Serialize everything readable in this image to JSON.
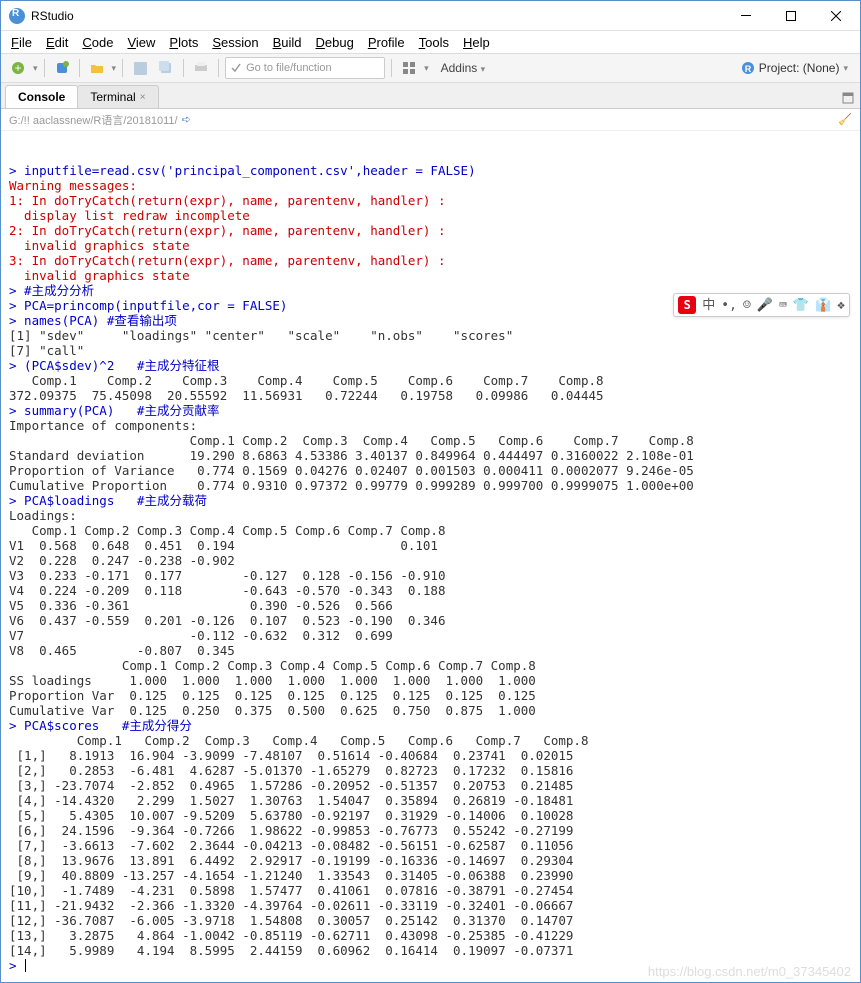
{
  "window": {
    "title": "RStudio"
  },
  "menu": [
    "File",
    "Edit",
    "Code",
    "View",
    "Plots",
    "Session",
    "Build",
    "Debug",
    "Profile",
    "Tools",
    "Help"
  ],
  "toolbar": {
    "search_placeholder": "Go to file/function",
    "addins_label": "Addins",
    "project_label": "Project: (None)"
  },
  "tabs": {
    "console": "Console",
    "terminal": "Terminal"
  },
  "path": "G:/!! aaclassnew/R语言/20181011/",
  "console_lines": [
    {
      "cls": "blue",
      "t": "> inputfile=read.csv('principal_component.csv',header = FALSE)"
    },
    {
      "cls": "red",
      "t": "Warning messages:"
    },
    {
      "cls": "red",
      "t": "1: In doTryCatch(return(expr), name, parentenv, handler) :"
    },
    {
      "cls": "red",
      "t": "  display list redraw incomplete"
    },
    {
      "cls": "red",
      "t": "2: In doTryCatch(return(expr), name, parentenv, handler) :"
    },
    {
      "cls": "red",
      "t": "  invalid graphics state"
    },
    {
      "cls": "red",
      "t": "3: In doTryCatch(return(expr), name, parentenv, handler) :"
    },
    {
      "cls": "red",
      "t": "  invalid graphics state"
    },
    {
      "cls": "blue",
      "t": "> #主成分分析"
    },
    {
      "cls": "blue",
      "t": "> PCA=princomp(inputfile,cor = FALSE)"
    },
    {
      "cls": "blue",
      "t": "> names(PCA) #查看输出项"
    },
    {
      "cls": "",
      "t": "[1] \"sdev\"     \"loadings\" \"center\"   \"scale\"    \"n.obs\"    \"scores\"  "
    },
    {
      "cls": "",
      "t": "[7] \"call\"    "
    },
    {
      "cls": "blue",
      "t": "> (PCA$sdev)^2   #主成分特征根"
    },
    {
      "cls": "",
      "t": "   Comp.1    Comp.2    Comp.3    Comp.4    Comp.5    Comp.6    Comp.7    Comp.8 "
    },
    {
      "cls": "",
      "t": "372.09375  75.45098  20.55592  11.56931   0.72244   0.19758   0.09986   0.04445 "
    },
    {
      "cls": "blue",
      "t": "> summary(PCA)   #主成分贡献率"
    },
    {
      "cls": "",
      "t": "Importance of components:"
    },
    {
      "cls": "",
      "t": "                        Comp.1 Comp.2  Comp.3  Comp.4   Comp.5   Comp.6    Comp.7    Comp.8"
    },
    {
      "cls": "",
      "t": "Standard deviation      19.290 8.6863 4.53386 3.40137 0.849964 0.444497 0.3160022 2.108e-01"
    },
    {
      "cls": "",
      "t": "Proportion of Variance   0.774 0.1569 0.04276 0.02407 0.001503 0.000411 0.0002077 9.246e-05"
    },
    {
      "cls": "",
      "t": "Cumulative Proportion    0.774 0.9310 0.97372 0.99779 0.999289 0.999700 0.9999075 1.000e+00"
    },
    {
      "cls": "blue",
      "t": "> PCA$loadings   #主成分载荷"
    },
    {
      "cls": "",
      "t": ""
    },
    {
      "cls": "",
      "t": "Loadings:"
    },
    {
      "cls": "",
      "t": "   Comp.1 Comp.2 Comp.3 Comp.4 Comp.5 Comp.6 Comp.7 Comp.8"
    },
    {
      "cls": "",
      "t": "V1  0.568  0.648  0.451  0.194                      0.101"
    },
    {
      "cls": "",
      "t": "V2  0.228  0.247 -0.238 -0.902                            "
    },
    {
      "cls": "",
      "t": "V3  0.233 -0.171  0.177        -0.127  0.128 -0.156 -0.910"
    },
    {
      "cls": "",
      "t": "V4  0.224 -0.209  0.118        -0.643 -0.570 -0.343  0.188"
    },
    {
      "cls": "",
      "t": "V5  0.336 -0.361                0.390 -0.526  0.566       "
    },
    {
      "cls": "",
      "t": "V6  0.437 -0.559  0.201 -0.126  0.107  0.523 -0.190  0.346"
    },
    {
      "cls": "",
      "t": "V7                      -0.112 -0.632  0.312  0.699       "
    },
    {
      "cls": "",
      "t": "V8  0.465        -0.807  0.345                            "
    },
    {
      "cls": "",
      "t": ""
    },
    {
      "cls": "",
      "t": "               Comp.1 Comp.2 Comp.3 Comp.4 Comp.5 Comp.6 Comp.7 Comp.8"
    },
    {
      "cls": "",
      "t": "SS loadings     1.000  1.000  1.000  1.000  1.000  1.000  1.000  1.000"
    },
    {
      "cls": "",
      "t": "Proportion Var  0.125  0.125  0.125  0.125  0.125  0.125  0.125  0.125"
    },
    {
      "cls": "",
      "t": "Cumulative Var  0.125  0.250  0.375  0.500  0.625  0.750  0.875  1.000"
    },
    {
      "cls": "blue",
      "t": "> PCA$scores   #主成分得分"
    },
    {
      "cls": "",
      "t": "         Comp.1   Comp.2  Comp.3   Comp.4   Comp.5   Comp.6   Comp.7   Comp.8"
    },
    {
      "cls": "",
      "t": " [1,]   8.1913  16.904 -3.9099 -7.48107  0.51614 -0.40684  0.23741  0.02015"
    },
    {
      "cls": "",
      "t": " [2,]   0.2853  -6.481  4.6287 -5.01370 -1.65279  0.82723  0.17232  0.15816"
    },
    {
      "cls": "",
      "t": " [3,] -23.7074  -2.852  0.4965  1.57286 -0.20952 -0.51357  0.20753  0.21485"
    },
    {
      "cls": "",
      "t": " [4,] -14.4320   2.299  1.5027  1.30763  1.54047  0.35894  0.26819 -0.18481"
    },
    {
      "cls": "",
      "t": " [5,]   5.4305  10.007 -9.5209  5.63780 -0.92197  0.31929 -0.14006  0.10028"
    },
    {
      "cls": "",
      "t": " [6,]  24.1596  -9.364 -0.7266  1.98622 -0.99853 -0.76773  0.55242 -0.27199"
    },
    {
      "cls": "",
      "t": " [7,]  -3.6613  -7.602  2.3644 -0.04213 -0.08482 -0.56151 -0.62587  0.11056"
    },
    {
      "cls": "",
      "t": " [8,]  13.9676  13.891  6.4492  2.92917 -0.19199 -0.16336 -0.14697  0.29304"
    },
    {
      "cls": "",
      "t": " [9,]  40.8809 -13.257 -4.1654 -1.21240  1.33543  0.31405 -0.06388  0.23990"
    },
    {
      "cls": "",
      "t": "[10,]  -1.7489  -4.231  0.5898  1.57477  0.41061  0.07816 -0.38791 -0.27454"
    },
    {
      "cls": "",
      "t": "[11,] -21.9432  -2.366 -1.3320 -4.39764 -0.02611 -0.33119 -0.32401 -0.06667"
    },
    {
      "cls": "",
      "t": "[12,] -36.7087  -6.005 -3.9718  1.54808  0.30057  0.25142  0.31370  0.14707"
    },
    {
      "cls": "",
      "t": "[13,]   3.2875   4.864 -1.0042 -0.85119 -0.62711  0.43098 -0.25385 -0.41229"
    },
    {
      "cls": "",
      "t": "[14,]   5.9989   4.194  8.5995  2.44159  0.60962  0.16414  0.19097 -0.07371"
    }
  ],
  "prompt": "> ",
  "floatbar": {
    "lang": "中",
    "items": [
      "•,",
      "☺",
      "🎤",
      "⌨",
      "👕",
      "👔",
      "❖"
    ]
  },
  "watermark": "https://blog.csdn.net/m0_37345402",
  "colors": {
    "blue": "#0000cc",
    "red": "#cc0000",
    "border": "#5a8ec7",
    "toolbar_bg": "#f5f5f5"
  }
}
